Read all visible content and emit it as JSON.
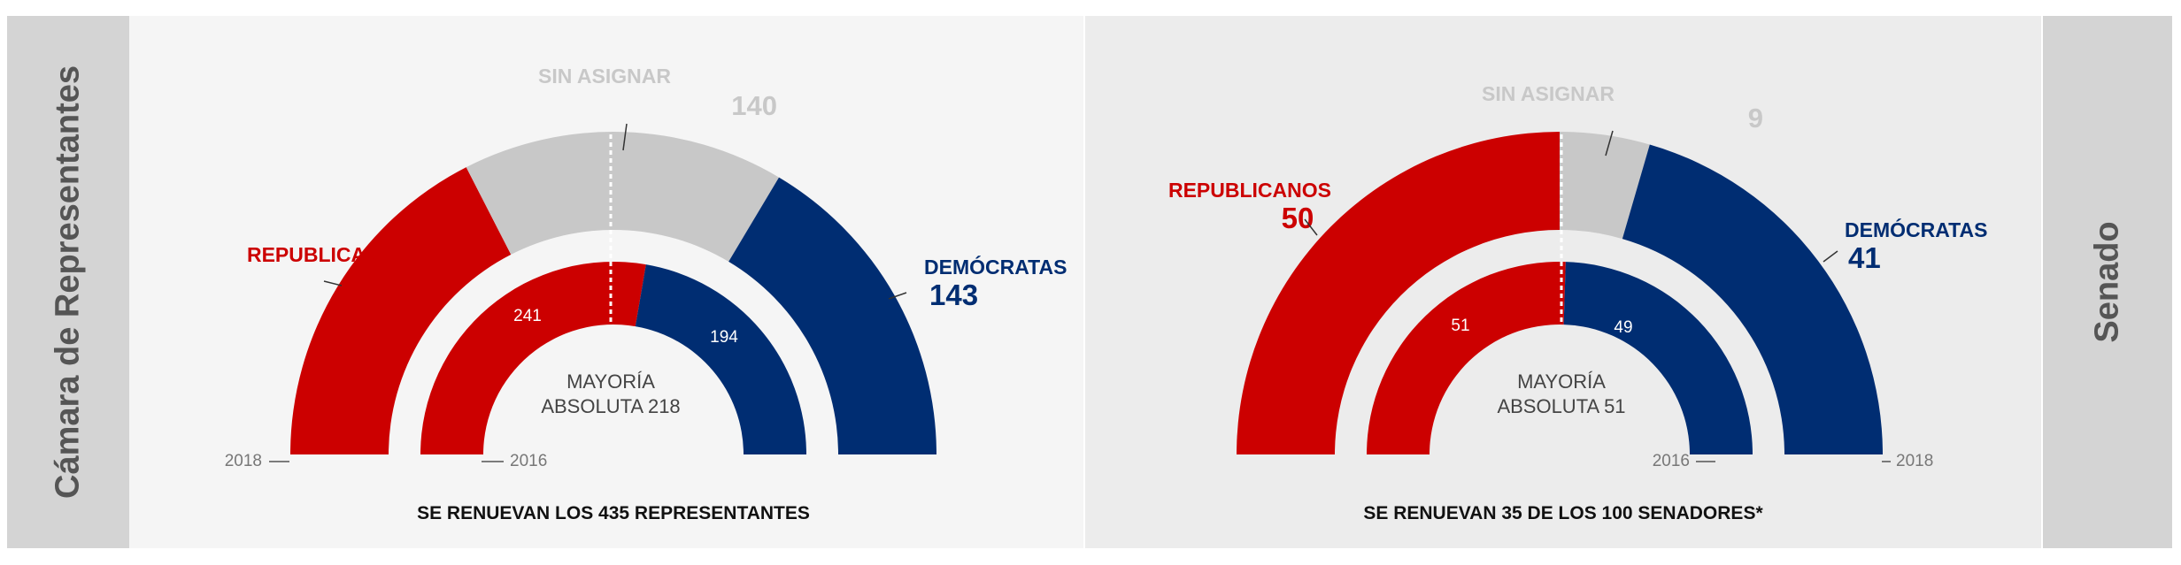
{
  "colors": {
    "republican": "#cc0000",
    "democrat": "#002d72",
    "unassigned": "#c8c8c8",
    "text_dark": "#111111",
    "text_gray": "#777777"
  },
  "house": {
    "side_label": "Cámara de Representantes",
    "footer": "SE RENUEVAN LOS 435 REPRESENTANTES",
    "majority_line1": "MAYORÍA",
    "majority_line2": "ABSOLUTA 218",
    "outer_year": "2018",
    "inner_year": "2016"
  },
  "senate": {
    "side_label": "Senado",
    "footer": "SE RENUEVAN 35 DE LOS 100 SENADORES*",
    "majority_line1": "MAYORÍA",
    "majority_line2": "ABSOLUTA 51",
    "outer_year": "2018",
    "inner_year": "2016"
  },
  "chart_data": [
    {
      "type": "pie",
      "chamber": "house",
      "rings": [
        {
          "year": "2018",
          "segments": [
            {
              "name": "REPUBLICANOS",
              "value": 152,
              "color": "#cc0000"
            },
            {
              "name": "SIN ASIGNAR",
              "value": 140,
              "color": "#c8c8c8"
            },
            {
              "name": "DEMÓCRATAS",
              "value": 143,
              "color": "#002d72"
            }
          ]
        },
        {
          "year": "2016",
          "segments": [
            {
              "name": "REPUBLICANOS",
              "value": 241,
              "color": "#cc0000"
            },
            {
              "name": "DEMÓCRATAS",
              "value": 194,
              "color": "#002d72"
            }
          ]
        }
      ],
      "majority": 218
    },
    {
      "type": "pie",
      "chamber": "senate",
      "rings": [
        {
          "year": "2018",
          "segments": [
            {
              "name": "REPUBLICANOS",
              "value": 50,
              "color": "#cc0000"
            },
            {
              "name": "SIN ASIGNAR",
              "value": 9,
              "color": "#c8c8c8"
            },
            {
              "name": "DEMÓCRATAS",
              "value": 41,
              "color": "#002d72"
            }
          ]
        },
        {
          "year": "2016",
          "segments": [
            {
              "name": "REPUBLICANOS",
              "value": 51,
              "color": "#cc0000"
            },
            {
              "name": "DEMÓCRATAS",
              "value": 49,
              "color": "#002d72"
            }
          ]
        }
      ],
      "majority": 51
    }
  ]
}
